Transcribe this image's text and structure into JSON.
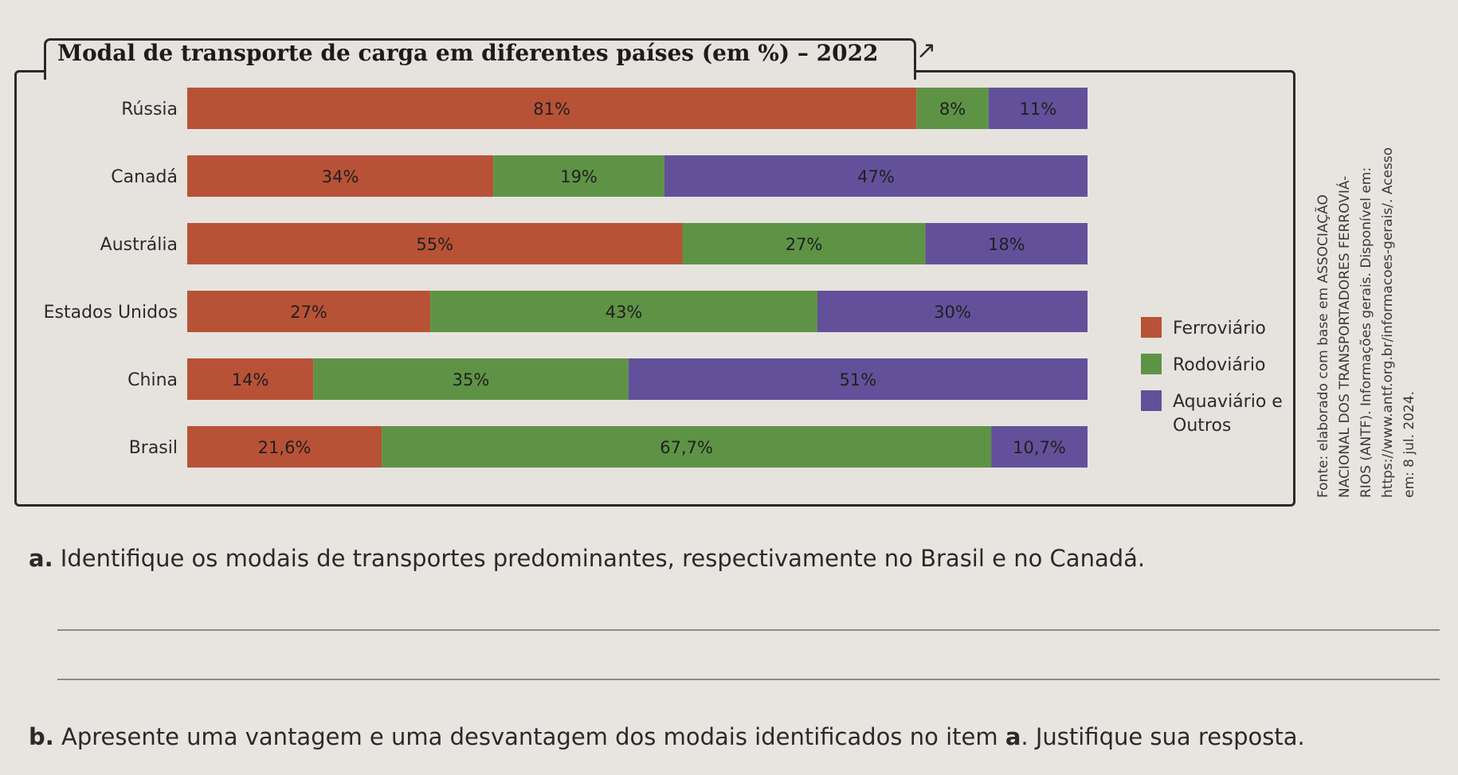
{
  "chart_data": {
    "type": "bar",
    "orientation": "horizontal",
    "stacked": true,
    "title": "Modal de transporte de carga em diferentes países (em %) – 2022",
    "categories": [
      "Rússia",
      "Canadá",
      "Austrália",
      "Estados Unidos",
      "China",
      "Brasil"
    ],
    "series": [
      {
        "name": "Ferroviário",
        "color": "#b85236",
        "values": [
          81,
          34,
          55,
          27,
          14,
          21.6
        ],
        "labels": [
          "81%",
          "34%",
          "55%",
          "27%",
          "14%",
          "21,6%"
        ]
      },
      {
        "name": "Rodoviário",
        "color": "#5e9345",
        "values": [
          8,
          19,
          27,
          43,
          35,
          67.7
        ],
        "labels": [
          "8%",
          "19%",
          "27%",
          "43%",
          "35%",
          "67,7%"
        ]
      },
      {
        "name": "Aquaviário e Outros",
        "color": "#62519a",
        "values": [
          11,
          47,
          18,
          30,
          51,
          10.7
        ],
        "labels": [
          "11%",
          "47%",
          "18%",
          "30%",
          "51%",
          "10,7%"
        ]
      }
    ],
    "xlim": [
      0,
      100
    ],
    "grid": false,
    "legend_position": "right"
  },
  "legend": [
    {
      "label": "Ferroviário",
      "color": "#b85236"
    },
    {
      "label": "Rodoviário",
      "color": "#5e9345"
    },
    {
      "label": "Aquaviário e Outros",
      "color": "#62519a"
    }
  ],
  "source_lines": [
    "Fonte: elaborado com base em ASSOCIAÇÃO",
    "NACIONAL DOS TRANSPORTADORES FERROVIÁ-",
    "RIOS (ANTF). Informações gerais. Disponível em:",
    "https://www.antf.org.br/informacoes-gerais/. Acesso",
    "em: 8 jul. 2024."
  ],
  "questions": {
    "a_marker": "a.",
    "a_text": " Identifique os modais de transportes predominantes, respectivamente no Brasil e no Canadá.",
    "b_marker": "b.",
    "b_text": " Apresente uma vantagem e uma desvantagem dos modais identificados no item ",
    "b_ref": "a",
    "b_end": ". Justifique sua resposta."
  }
}
